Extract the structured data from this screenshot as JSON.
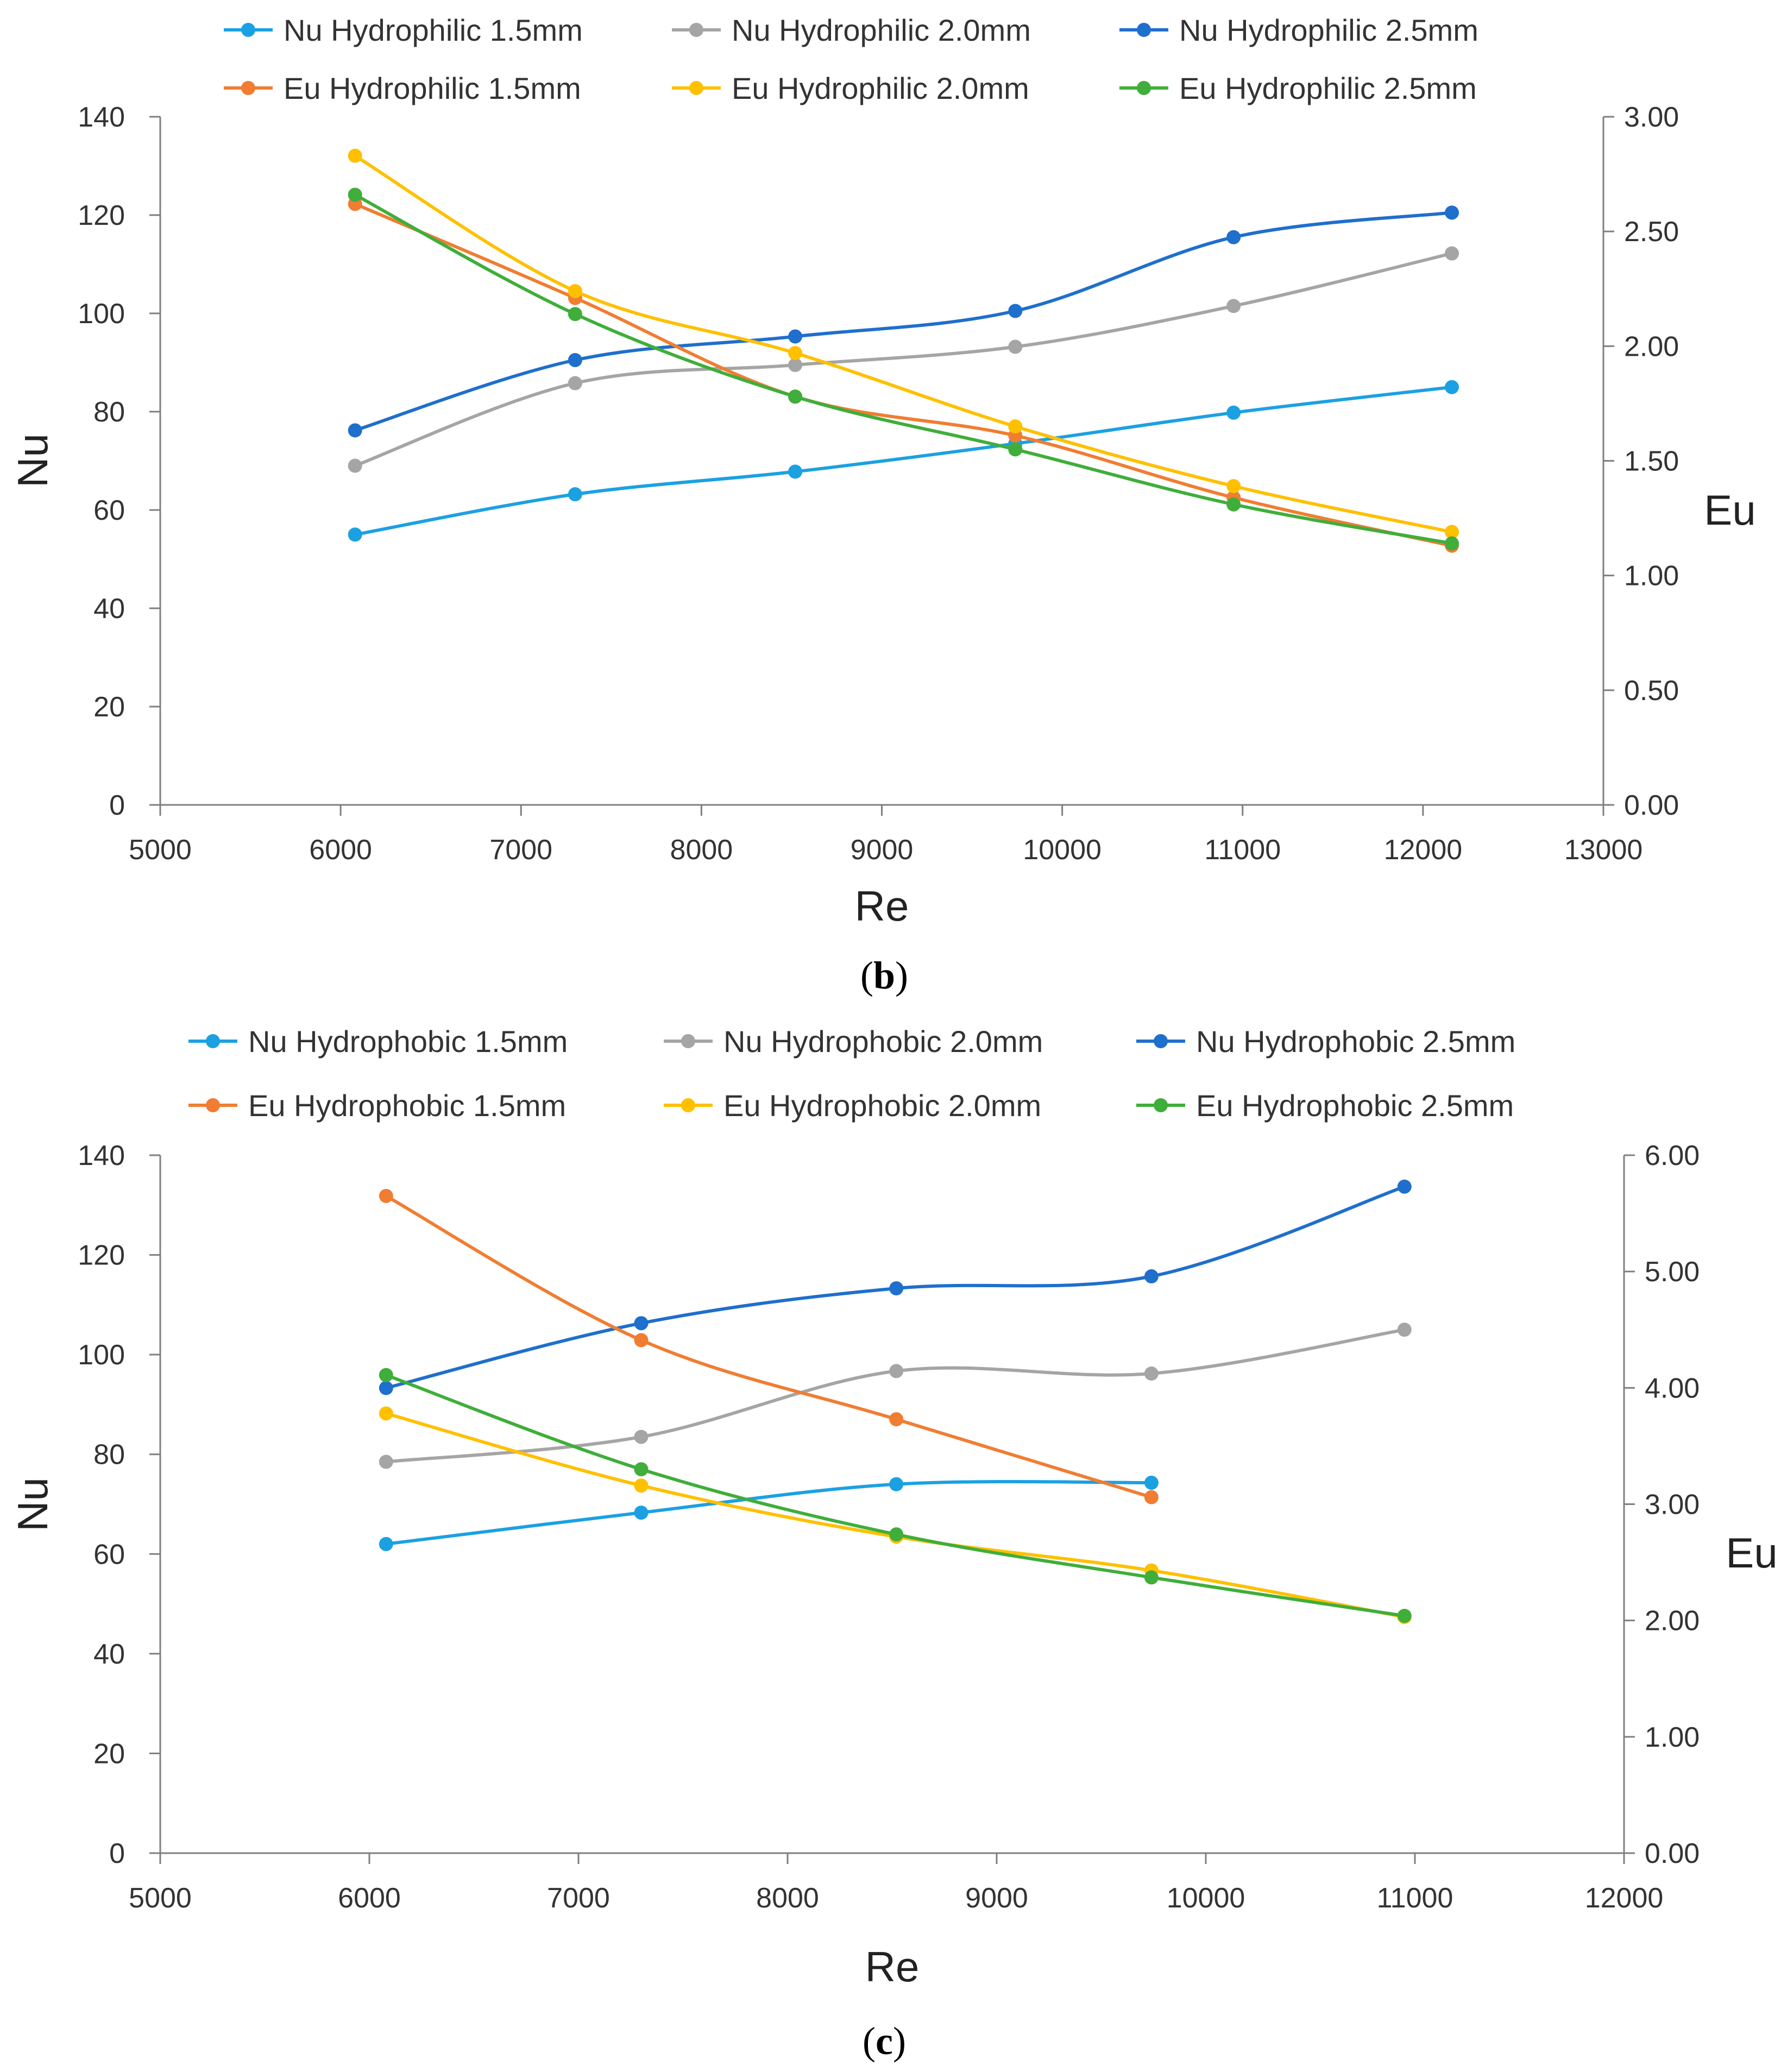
{
  "chart_data": [
    {
      "id": "b",
      "type": "line",
      "caption": "b",
      "xlabel": "Re",
      "ylabel": "Nu",
      "y2label": "Eu",
      "xlim": [
        5000,
        13000
      ],
      "ylim": [
        0,
        140
      ],
      "y2lim": [
        0,
        3
      ],
      "xticks": [
        "5000",
        "6000",
        "7000",
        "8000",
        "9000",
        "10000",
        "11000",
        "12000",
        "13000"
      ],
      "yticks": [
        "0",
        "20",
        "40",
        "60",
        "80",
        "100",
        "120",
        "140"
      ],
      "y2ticks": [
        "0.00",
        "0.50",
        "1.00",
        "1.50",
        "2.00",
        "2.50",
        "3.00"
      ],
      "grid": false,
      "legend_position": "top",
      "series": [
        {
          "name": "Nu Hydrophilic  1.5mm",
          "color": "#1BA1E2",
          "axis": "left",
          "x": [
            6080,
            7300,
            8520,
            9740,
            10950,
            12160
          ],
          "values": [
            55,
            63.2,
            67.8,
            73.5,
            79.8,
            85
          ]
        },
        {
          "name": "Nu Hydrophilic  2.0mm",
          "color": "#A5A5A5",
          "axis": "left",
          "x": [
            6080,
            7300,
            8520,
            9740,
            10950,
            12160
          ],
          "values": [
            69,
            85.8,
            89.5,
            93.2,
            101.5,
            112.2
          ]
        },
        {
          "name": "Nu Hydrophilic  2.5mm",
          "color": "#1F6FCC",
          "axis": "left",
          "x": [
            6080,
            7300,
            8520,
            9740,
            10950,
            12160
          ],
          "values": [
            76.2,
            90.5,
            95.3,
            100.5,
            115.5,
            120.5
          ]
        },
        {
          "name": "Eu Hydrophilic  1.5mm",
          "color": "#F07D32",
          "axis": "right",
          "x": [
            6080,
            7300,
            8520,
            9740,
            10950,
            12160
          ],
          "values": [
            2.62,
            2.21,
            1.78,
            1.61,
            1.34,
            1.13
          ]
        },
        {
          "name": "Eu Hydrophilic  2.0mm",
          "color": "#FFC000",
          "axis": "right",
          "x": [
            6080,
            7300,
            8520,
            9740,
            10950,
            12160
          ],
          "values": [
            2.83,
            2.24,
            1.97,
            1.65,
            1.39,
            1.19
          ]
        },
        {
          "name": "Eu Hydrophilic  2.5mm",
          "color": "#3FAE3A",
          "axis": "right",
          "x": [
            6080,
            7300,
            8520,
            9740,
            10950,
            12160
          ],
          "values": [
            2.66,
            2.14,
            1.78,
            1.55,
            1.31,
            1.14
          ]
        }
      ]
    },
    {
      "id": "c",
      "type": "line",
      "caption": "c",
      "xlabel": "Re",
      "ylabel": "Nu",
      "y2label": "Eu",
      "xlim": [
        5000,
        12000
      ],
      "ylim": [
        0,
        140
      ],
      "y2lim": [
        0,
        6
      ],
      "xticks": [
        "5000",
        "6000",
        "7000",
        "8000",
        "9000",
        "10000",
        "11000",
        "12000"
      ],
      "yticks": [
        "0",
        "20",
        "40",
        "60",
        "80",
        "100",
        "120",
        "140"
      ],
      "y2ticks": [
        "0.00",
        "1.00",
        "2.00",
        "3.00",
        "4.00",
        "5.00",
        "6.00"
      ],
      "grid": false,
      "legend_position": "top",
      "series": [
        {
          "name": "Nu Hydrophobic   1.5mm",
          "color": "#1BA1E2",
          "axis": "left",
          "x": [
            6080,
            7300,
            8520,
            9740
          ],
          "values": [
            62,
            68.3,
            74,
            74.3
          ]
        },
        {
          "name": "Nu Hydrophobic 2.0mm",
          "color": "#A5A5A5",
          "axis": "left",
          "x": [
            6080,
            7300,
            8520,
            9740,
            10950
          ],
          "values": [
            78.5,
            83.5,
            96.7,
            96.2,
            105
          ]
        },
        {
          "name": "Nu Hydrophobic  2.5mm",
          "color": "#1F6FCC",
          "axis": "left",
          "x": [
            6080,
            7300,
            8520,
            9740,
            10950
          ],
          "values": [
            93.3,
            106.3,
            113.3,
            115.7,
            133.7
          ]
        },
        {
          "name": "Eu Hydrophobic  1.5mm",
          "color": "#F07D32",
          "axis": "right",
          "x": [
            6080,
            7300,
            8520,
            9740
          ],
          "values": [
            5.65,
            4.41,
            3.73,
            3.06
          ]
        },
        {
          "name": "Eu Hydrophobic 2.0mm",
          "color": "#FFC000",
          "axis": "right",
          "x": [
            6080,
            7300,
            8520,
            9740,
            10950
          ],
          "values": [
            3.78,
            3.16,
            2.72,
            2.43,
            2.03
          ]
        },
        {
          "name": "Eu Hydrophobic  2.5mm",
          "color": "#3FAE3A",
          "axis": "right",
          "x": [
            6080,
            7300,
            8520,
            9740,
            10950
          ],
          "values": [
            4.11,
            3.3,
            2.74,
            2.37,
            2.04
          ]
        }
      ]
    }
  ]
}
